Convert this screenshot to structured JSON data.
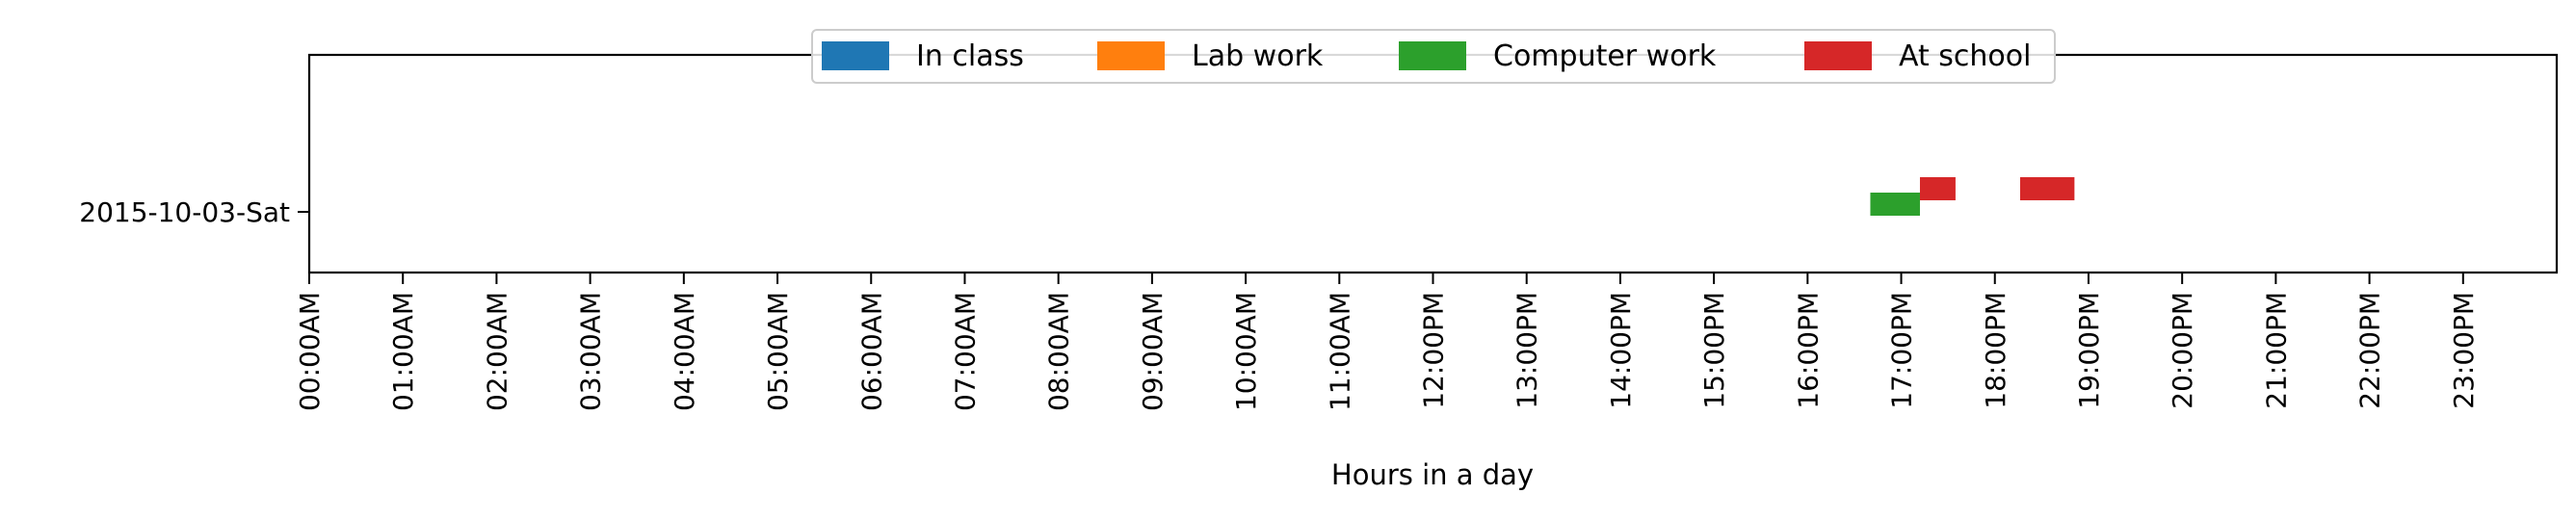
{
  "chart_data": {
    "type": "bar",
    "orientation": "horizontal-timeline",
    "title": "",
    "xlabel": "Hours in a day",
    "ylabel": "",
    "xlim": [
      0,
      24
    ],
    "x_ticks": [
      {
        "value": 0,
        "label": "00:00AM"
      },
      {
        "value": 1,
        "label": "01:00AM"
      },
      {
        "value": 2,
        "label": "02:00AM"
      },
      {
        "value": 3,
        "label": "03:00AM"
      },
      {
        "value": 4,
        "label": "04:00AM"
      },
      {
        "value": 5,
        "label": "05:00AM"
      },
      {
        "value": 6,
        "label": "06:00AM"
      },
      {
        "value": 7,
        "label": "07:00AM"
      },
      {
        "value": 8,
        "label": "08:00AM"
      },
      {
        "value": 9,
        "label": "09:00AM"
      },
      {
        "value": 10,
        "label": "10:00AM"
      },
      {
        "value": 11,
        "label": "11:00AM"
      },
      {
        "value": 12,
        "label": "12:00PM"
      },
      {
        "value": 13,
        "label": "13:00PM"
      },
      {
        "value": 14,
        "label": "14:00PM"
      },
      {
        "value": 15,
        "label": "15:00PM"
      },
      {
        "value": 16,
        "label": "16:00PM"
      },
      {
        "value": 17,
        "label": "17:00PM"
      },
      {
        "value": 18,
        "label": "18:00PM"
      },
      {
        "value": 19,
        "label": "19:00PM"
      },
      {
        "value": 20,
        "label": "20:00PM"
      },
      {
        "value": 21,
        "label": "21:00PM"
      },
      {
        "value": 22,
        "label": "22:00PM"
      },
      {
        "value": 23,
        "label": "23:00PM"
      }
    ],
    "categories": [
      "2015-10-03-Sat"
    ],
    "grid": false,
    "legend_position": "top-center",
    "series": [
      {
        "name": "In class",
        "color": "#1f77b4",
        "intervals": []
      },
      {
        "name": "Lab work",
        "color": "#ff7f0e",
        "intervals": []
      },
      {
        "name": "Computer work",
        "color": "#2ca02c",
        "intervals": [
          {
            "category": "2015-10-03-Sat",
            "start": 16.67,
            "end": 17.2
          }
        ]
      },
      {
        "name": "At school",
        "color": "#d62728",
        "intervals": [
          {
            "category": "2015-10-03-Sat",
            "start": 17.2,
            "end": 17.58
          },
          {
            "category": "2015-10-03-Sat",
            "start": 18.27,
            "end": 18.85
          }
        ]
      }
    ]
  }
}
